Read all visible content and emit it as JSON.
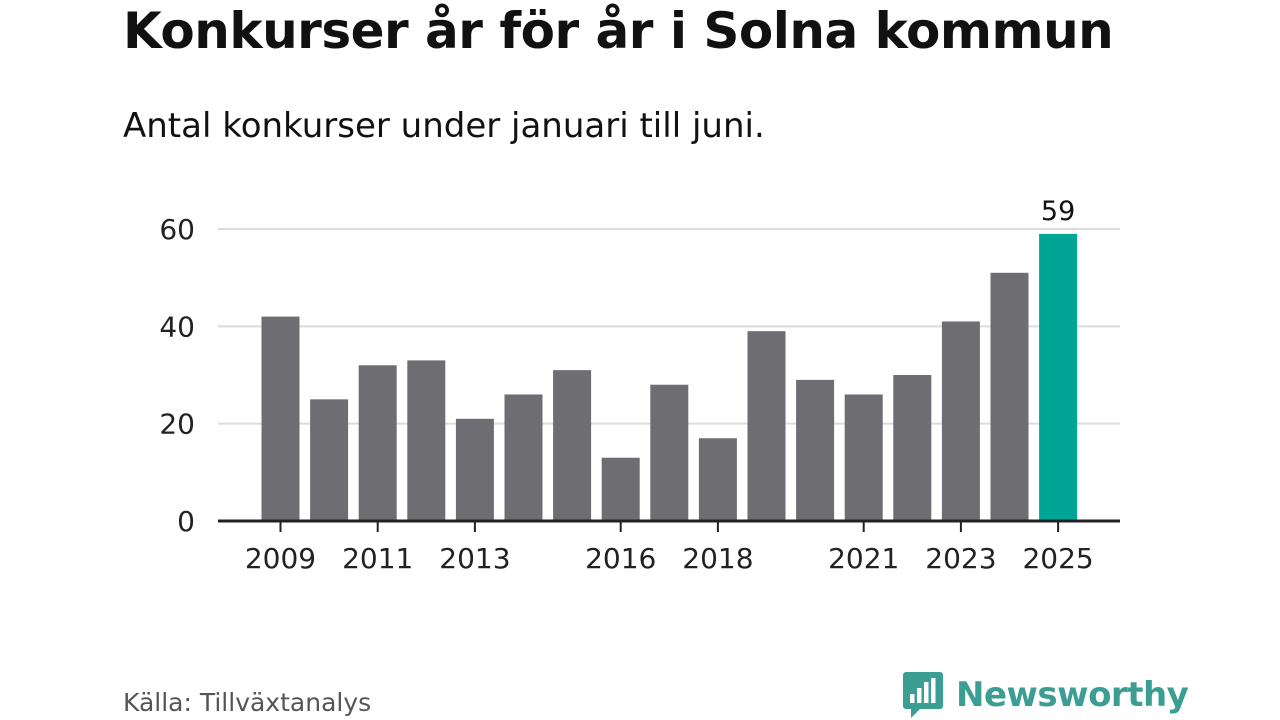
{
  "header": {
    "title": "Konkurser år för år i Solna kommun",
    "subtitle": "Antal konkurser under januari till juni."
  },
  "footer": {
    "source": "Källa: Tillväxtanalys",
    "brand": "Newsworthy"
  },
  "colors": {
    "bar": "#6e6d72",
    "highlight": "#00a595",
    "grid": "#dcdcdc",
    "axis": "#222222",
    "brand": "#3a9e92"
  },
  "icons": {
    "brand": "newsworthy-logo-icon"
  },
  "chart_data": {
    "type": "bar",
    "title": "Konkurser år för år i Solna kommun",
    "subtitle": "Antal konkurser under januari till juni.",
    "categories": [
      "2009",
      "2010",
      "2011",
      "2012",
      "2013",
      "2014",
      "2015",
      "2016",
      "2017",
      "2018",
      "2019",
      "2020",
      "2021",
      "2022",
      "2023",
      "2024",
      "2025"
    ],
    "values": [
      42,
      25,
      32,
      33,
      21,
      26,
      31,
      13,
      28,
      17,
      39,
      29,
      26,
      30,
      41,
      51,
      59
    ],
    "x_tick_labels": [
      "2009",
      "2011",
      "2013",
      "2016",
      "2018",
      "2021",
      "2023",
      "2025"
    ],
    "y_ticks": [
      0,
      20,
      40,
      60
    ],
    "ylim": [
      0,
      60
    ],
    "grid": true,
    "highlight_category": "2025",
    "data_labels": [
      {
        "category": "2025",
        "text": "59"
      }
    ],
    "xlabel": "",
    "ylabel": ""
  }
}
